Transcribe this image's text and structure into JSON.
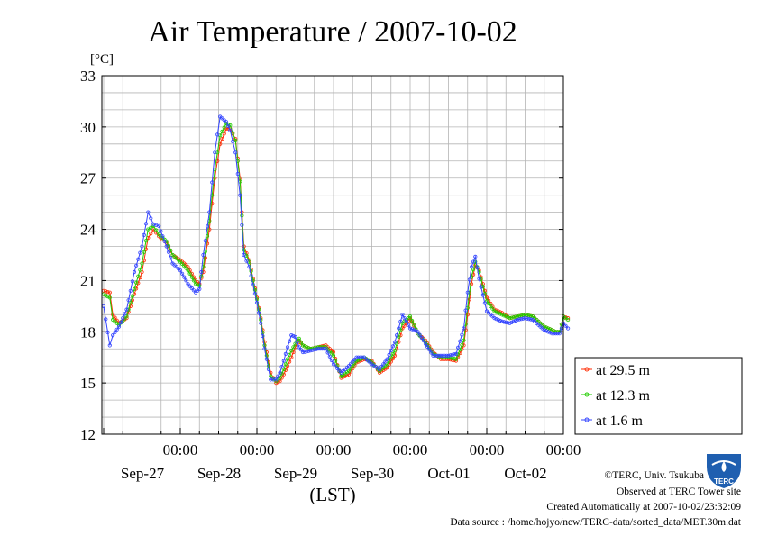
{
  "chart_data": {
    "type": "line",
    "title": "Air Temperature / 2007-10-02",
    "ylabel": "[°C]",
    "xlabel": "(LST)",
    "ylim": [
      12,
      33
    ],
    "yticks": [
      "12",
      "15",
      "18",
      "21",
      "24",
      "27",
      "30",
      "33"
    ],
    "xlim": [
      0,
      6
    ],
    "x_ticks": [
      {
        "x": 1,
        "time": "00:00",
        "date": "Sep-27"
      },
      {
        "x": 2,
        "time": "00:00",
        "date": "Sep-28"
      },
      {
        "x": 3,
        "time": "00:00",
        "date": "Sep-29"
      },
      {
        "x": 4,
        "time": "00:00",
        "date": "Sep-30"
      },
      {
        "x": 5,
        "time": "00:00",
        "date": "Oct-01"
      },
      {
        "x": 6,
        "time": "00:00",
        "date": "Oct-02"
      }
    ],
    "grid": true,
    "legend_position": "right",
    "series": [
      {
        "name": "at 29.5 m",
        "color": "#ff2a00",
        "x": [
          0,
          0.08,
          0.12,
          0.2,
          0.3,
          0.4,
          0.5,
          0.58,
          0.65,
          0.72,
          0.82,
          0.9,
          1.0,
          1.1,
          1.2,
          1.25,
          1.3,
          1.38,
          1.45,
          1.52,
          1.6,
          1.65,
          1.72,
          1.78,
          1.83,
          1.9,
          2.0,
          2.05,
          2.1,
          2.18,
          2.25,
          2.3,
          2.35,
          2.4,
          2.45,
          2.5,
          2.55,
          2.6,
          2.7,
          2.8,
          2.9,
          3.0,
          3.1,
          3.2,
          3.3,
          3.4,
          3.5,
          3.6,
          3.7,
          3.8,
          3.9,
          4.0,
          4.1,
          4.2,
          4.3,
          4.4,
          4.5,
          4.6,
          4.7,
          4.75,
          4.8,
          4.85,
          4.9,
          5.0,
          5.1,
          5.2,
          5.3,
          5.4,
          5.5,
          5.6,
          5.65,
          5.7,
          5.75,
          5.8,
          5.85,
          5.9,
          5.95,
          6.0,
          6.06
        ],
        "y": [
          20.4,
          20.3,
          19.0,
          18.5,
          18.8,
          20.2,
          21.5,
          23.5,
          24.0,
          23.6,
          23.2,
          22.5,
          22.2,
          21.8,
          21.0,
          20.8,
          21.5,
          24.0,
          27.0,
          29.0,
          29.9,
          29.9,
          29.3,
          27.0,
          23.0,
          22.2,
          20.0,
          18.8,
          17.4,
          15.6,
          15.0,
          15.1,
          15.5,
          16.0,
          16.5,
          17.1,
          17.5,
          17.2,
          17.0,
          17.1,
          17.2,
          16.8,
          15.3,
          15.5,
          16.2,
          16.4,
          16.3,
          15.6,
          15.9,
          16.6,
          18.2,
          18.8,
          17.9,
          17.5,
          16.8,
          16.4,
          16.4,
          16.3,
          17.2,
          19.0,
          20.8,
          21.9,
          21.6,
          20.0,
          19.3,
          19.1,
          18.8,
          18.9,
          19.0,
          18.9,
          18.7,
          18.5,
          18.3,
          18.2,
          18.1,
          18.0,
          18.0,
          18.9,
          18.8
        ]
      },
      {
        "name": "at 12.3 m",
        "color": "#22cc00",
        "x": [
          0,
          0.08,
          0.12,
          0.2,
          0.3,
          0.4,
          0.5,
          0.58,
          0.65,
          0.72,
          0.82,
          0.9,
          1.0,
          1.1,
          1.2,
          1.25,
          1.3,
          1.38,
          1.45,
          1.52,
          1.6,
          1.65,
          1.72,
          1.78,
          1.83,
          1.9,
          2.0,
          2.05,
          2.1,
          2.18,
          2.25,
          2.3,
          2.35,
          2.4,
          2.45,
          2.5,
          2.55,
          2.6,
          2.7,
          2.8,
          2.9,
          3.0,
          3.1,
          3.2,
          3.3,
          3.4,
          3.5,
          3.6,
          3.7,
          3.8,
          3.9,
          4.0,
          4.1,
          4.2,
          4.3,
          4.4,
          4.5,
          4.6,
          4.7,
          4.75,
          4.8,
          4.85,
          4.9,
          5.0,
          5.1,
          5.2,
          5.3,
          5.4,
          5.5,
          5.6,
          5.65,
          5.7,
          5.75,
          5.8,
          5.85,
          5.9,
          5.95,
          6.0,
          6.06
        ],
        "y": [
          20.2,
          20.0,
          18.7,
          18.4,
          18.9,
          20.5,
          22.0,
          24.0,
          24.2,
          23.7,
          23.3,
          22.5,
          22.1,
          21.6,
          20.8,
          20.7,
          21.8,
          24.5,
          27.5,
          29.5,
          30.2,
          30.1,
          29.2,
          26.8,
          22.8,
          22.1,
          19.9,
          18.7,
          17.2,
          15.4,
          15.1,
          15.3,
          15.8,
          16.4,
          16.9,
          17.3,
          17.6,
          17.2,
          17.0,
          17.1,
          17.1,
          16.6,
          15.4,
          15.7,
          16.3,
          16.5,
          16.2,
          15.7,
          16.1,
          16.9,
          18.5,
          18.9,
          17.9,
          17.4,
          16.7,
          16.5,
          16.5,
          16.4,
          17.5,
          19.4,
          21.2,
          22.1,
          21.5,
          19.8,
          19.2,
          19.0,
          18.8,
          18.9,
          19.0,
          18.9,
          18.7,
          18.5,
          18.3,
          18.2,
          18.1,
          18.0,
          18.0,
          18.9,
          18.7
        ]
      },
      {
        "name": "at 1.6 m",
        "color": "#3344ff",
        "x": [
          0,
          0.08,
          0.12,
          0.2,
          0.3,
          0.4,
          0.5,
          0.58,
          0.65,
          0.72,
          0.82,
          0.9,
          1.0,
          1.1,
          1.2,
          1.25,
          1.3,
          1.38,
          1.45,
          1.52,
          1.6,
          1.65,
          1.72,
          1.78,
          1.83,
          1.9,
          2.0,
          2.05,
          2.1,
          2.18,
          2.25,
          2.3,
          2.35,
          2.4,
          2.45,
          2.5,
          2.55,
          2.6,
          2.7,
          2.8,
          2.9,
          3.0,
          3.1,
          3.2,
          3.3,
          3.4,
          3.5,
          3.6,
          3.7,
          3.8,
          3.9,
          4.0,
          4.1,
          4.2,
          4.3,
          4.4,
          4.5,
          4.6,
          4.7,
          4.75,
          4.8,
          4.85,
          4.9,
          5.0,
          5.1,
          5.2,
          5.3,
          5.4,
          5.5,
          5.6,
          5.65,
          5.7,
          5.75,
          5.8,
          5.85,
          5.9,
          5.95,
          6.0,
          6.06
        ],
        "y": [
          19.5,
          17.2,
          17.8,
          18.3,
          19.3,
          21.5,
          23.0,
          25.0,
          24.3,
          24.2,
          23.0,
          22.0,
          21.6,
          20.8,
          20.3,
          20.5,
          22.5,
          25.0,
          28.5,
          30.6,
          30.3,
          29.8,
          28.5,
          26.0,
          22.5,
          21.8,
          19.7,
          18.5,
          17.0,
          15.2,
          15.2,
          15.6,
          16.3,
          17.1,
          17.8,
          17.7,
          17.1,
          16.8,
          16.9,
          17.0,
          17.0,
          16.1,
          15.6,
          16.0,
          16.5,
          16.5,
          16.1,
          15.8,
          16.4,
          17.4,
          19.0,
          18.2,
          18.0,
          17.3,
          16.6,
          16.6,
          16.6,
          16.7,
          18.2,
          20.3,
          21.8,
          22.4,
          21.1,
          19.2,
          18.8,
          18.6,
          18.5,
          18.7,
          18.8,
          18.7,
          18.5,
          18.3,
          18.1,
          18.0,
          17.9,
          17.9,
          17.9,
          18.5,
          18.2
        ]
      }
    ]
  },
  "footer": {
    "credit": "©TERC, Univ. Tsukuba",
    "observed": "Observed at TERC Tower site",
    "created": "Created Automatically at 2007-10-02/23:32:09",
    "source": "Data source : /home/hojyo/new/TERC-data/sorted_data/MET.30m.dat",
    "logo_text": "TERC"
  }
}
